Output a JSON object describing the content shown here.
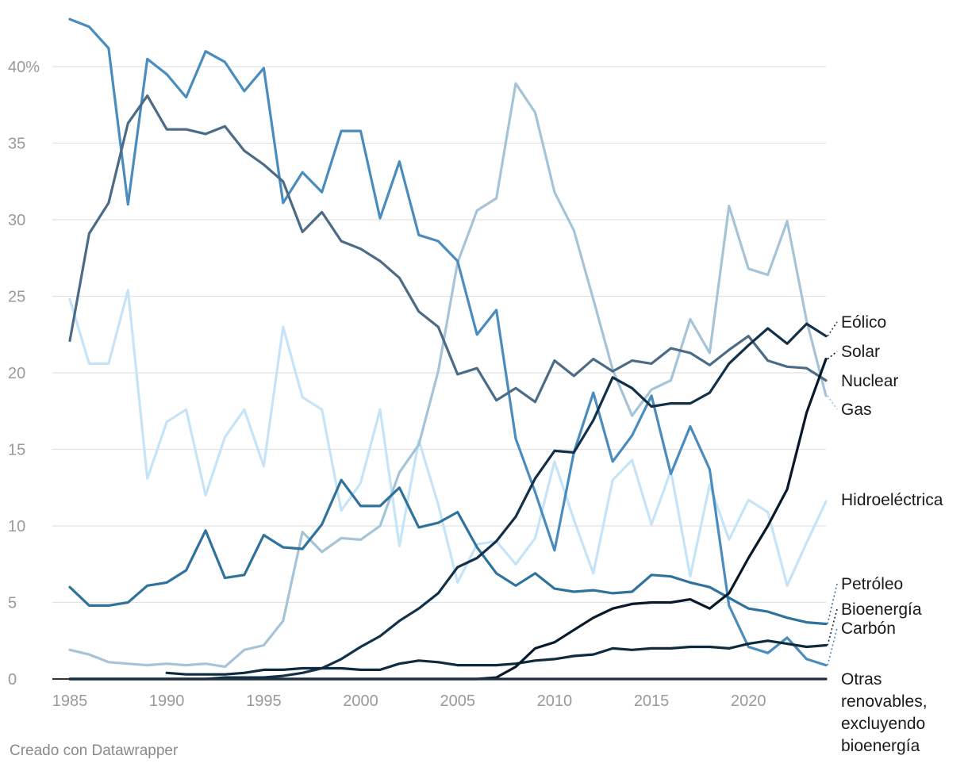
{
  "chart_data": {
    "type": "line",
    "title": "",
    "xlabel": "",
    "ylabel": "",
    "x": [
      1985,
      1986,
      1987,
      1988,
      1989,
      1990,
      1991,
      1992,
      1993,
      1994,
      1995,
      1996,
      1997,
      1998,
      1999,
      2000,
      2001,
      2002,
      2003,
      2004,
      2005,
      2006,
      2007,
      2008,
      2009,
      2010,
      2011,
      2012,
      2013,
      2014,
      2015,
      2016,
      2017,
      2018,
      2019,
      2020,
      2021,
      2022,
      2023,
      2024
    ],
    "xlim": [
      1985,
      2024
    ],
    "ylim": [
      0,
      44
    ],
    "xticks": [
      1985,
      1990,
      1995,
      2000,
      2005,
      2010,
      2015,
      2020
    ],
    "yticks": [
      0,
      5,
      10,
      15,
      20,
      25,
      30,
      35,
      40
    ],
    "ytick_labels": [
      "0",
      "5",
      "10",
      "15",
      "20",
      "25",
      "30",
      "35",
      "40%"
    ],
    "grid": true,
    "series": [
      {
        "name": "Hidroeléctrica",
        "color": "#c6e4f8",
        "values": [
          24.8,
          20.6,
          20.6,
          25.4,
          13.1,
          16.8,
          17.6,
          12.0,
          15.8,
          17.6,
          13.9,
          23.0,
          18.4,
          17.6,
          11.0,
          12.8,
          17.6,
          8.7,
          15.6,
          11.4,
          6.3,
          8.8,
          9.0,
          7.5,
          9.2,
          14.2,
          10.4,
          6.9,
          13.0,
          14.3,
          10.1,
          13.6,
          6.7,
          12.7,
          9.1,
          11.7,
          10.9,
          6.1,
          8.9,
          11.6
        ]
      },
      {
        "name": "Gas",
        "color": "#a5c4d8",
        "values": [
          1.9,
          1.6,
          1.1,
          1.0,
          0.9,
          1.0,
          0.9,
          1.0,
          0.8,
          1.9,
          2.2,
          3.8,
          9.6,
          8.3,
          9.2,
          9.1,
          10.0,
          13.5,
          15.3,
          20.1,
          27.2,
          30.6,
          31.4,
          38.9,
          37.0,
          31.8,
          29.3,
          24.8,
          20.2,
          17.2,
          18.9,
          19.5,
          23.5,
          21.3,
          30.9,
          26.8,
          26.4,
          29.9,
          23.4,
          18.5
        ]
      },
      {
        "name": "Carbón",
        "color": "#4a8cbe",
        "values": [
          43.1,
          42.6,
          41.2,
          31.0,
          40.5,
          39.5,
          38.0,
          41.0,
          40.3,
          38.4,
          39.9,
          31.1,
          33.1,
          31.8,
          35.8,
          35.8,
          30.1,
          33.8,
          29.0,
          28.6,
          27.3,
          22.5,
          24.1,
          15.7,
          12.2,
          8.4,
          14.8,
          18.7,
          14.2,
          15.9,
          18.5,
          13.4,
          16.5,
          13.7,
          4.8,
          2.1,
          1.7,
          2.7,
          1.3,
          0.9
        ]
      },
      {
        "name": "Nuclear",
        "color": "#4b6b86",
        "values": [
          22.1,
          29.1,
          31.1,
          36.3,
          38.1,
          35.9,
          35.9,
          35.6,
          36.1,
          34.5,
          33.6,
          32.5,
          29.2,
          30.5,
          28.6,
          28.1,
          27.3,
          26.2,
          24.0,
          23.0,
          19.9,
          20.3,
          18.2,
          19.0,
          18.1,
          20.8,
          19.8,
          20.9,
          20.1,
          20.8,
          20.6,
          21.6,
          21.3,
          20.5,
          21.5,
          22.4,
          20.8,
          20.4,
          20.3,
          19.5
        ]
      },
      {
        "name": "Petróleo",
        "color": "#2f729c",
        "values": [
          6.0,
          4.8,
          4.8,
          5.0,
          6.1,
          6.3,
          7.1,
          9.7,
          6.6,
          6.8,
          9.4,
          8.6,
          8.5,
          10.1,
          13.0,
          11.3,
          11.3,
          12.5,
          9.9,
          10.2,
          10.9,
          8.6,
          6.9,
          6.1,
          6.9,
          5.9,
          5.7,
          5.8,
          5.6,
          5.7,
          6.8,
          6.7,
          6.3,
          6.0,
          5.3,
          4.6,
          4.4,
          4.0,
          3.7,
          3.6
        ]
      },
      {
        "name": "Eólico",
        "color": "#123149",
        "values": [
          0.0,
          0.0,
          0.0,
          0.0,
          0.0,
          0.0,
          0.0,
          0.0,
          0.1,
          0.1,
          0.1,
          0.2,
          0.4,
          0.7,
          1.3,
          2.1,
          2.8,
          3.8,
          4.6,
          5.6,
          7.3,
          7.9,
          9.0,
          10.6,
          13.1,
          14.9,
          14.8,
          16.9,
          19.7,
          19.0,
          17.8,
          18.0,
          18.0,
          18.7,
          20.6,
          21.8,
          22.9,
          21.9,
          23.2,
          22.4
        ]
      },
      {
        "name": "Bioenergía",
        "color": "#0e2a3e",
        "values": [
          null,
          null,
          null,
          null,
          null,
          0.4,
          0.3,
          0.3,
          0.3,
          0.4,
          0.6,
          0.6,
          0.7,
          0.7,
          0.7,
          0.6,
          0.6,
          1.0,
          1.2,
          1.1,
          0.9,
          0.9,
          0.9,
          1.0,
          1.2,
          1.3,
          1.5,
          1.6,
          2.0,
          1.9,
          2.0,
          2.0,
          2.1,
          2.1,
          2.0,
          2.3,
          2.5,
          2.3,
          2.1,
          2.2
        ]
      },
      {
        "name": "Solar",
        "color": "#07192a",
        "values": [
          0.0,
          0.0,
          0.0,
          0.0,
          0.0,
          0.0,
          0.0,
          0.0,
          0.0,
          0.0,
          0.0,
          0.0,
          0.0,
          0.0,
          0.0,
          0.0,
          0.0,
          0.0,
          0.0,
          0.0,
          0.0,
          0.0,
          0.1,
          0.8,
          2.0,
          2.4,
          3.2,
          4.0,
          4.6,
          4.9,
          5.0,
          5.0,
          5.2,
          4.6,
          5.6,
          7.9,
          10.0,
          12.4,
          17.4,
          20.9
        ]
      },
      {
        "name": "Otras renovables, excluyendo bioenergía",
        "color": "#1c2f40",
        "values": [
          0.0,
          0.0,
          0.0,
          0.0,
          0.0,
          0.0,
          0.0,
          0.0,
          0.0,
          0.0,
          0.0,
          0.0,
          0.0,
          0.0,
          0.0,
          0.0,
          0.0,
          0.0,
          0.0,
          0.0,
          0.0,
          0.0,
          0.0,
          0.0,
          0.0,
          0.0,
          0.0,
          0.0,
          0.0,
          0.0,
          0.0,
          0.0,
          0.0,
          0.0,
          0.0,
          0.0,
          0.0,
          0.0,
          0.0,
          0.0
        ]
      }
    ],
    "labels": [
      {
        "series": "Eólico",
        "lines": [
          "Eólico"
        ]
      },
      {
        "series": "Solar",
        "lines": [
          "Solar"
        ]
      },
      {
        "series": "Nuclear",
        "lines": [
          "Nuclear"
        ]
      },
      {
        "series": "Gas",
        "lines": [
          "Gas"
        ]
      },
      {
        "series": "Hidroeléctrica",
        "lines": [
          "Hidroeléctrica"
        ]
      },
      {
        "series": "Petróleo",
        "lines": [
          "Petróleo"
        ]
      },
      {
        "series": "Bioenergía",
        "lines": [
          "Bioenergía"
        ]
      },
      {
        "series": "Carbón",
        "lines": [
          "Carbón"
        ]
      },
      {
        "series": "Otras renovables, excluyendo bioenergía",
        "lines": [
          "Otras",
          "renovables,",
          "excluyendo",
          "bioenergía"
        ]
      }
    ]
  },
  "footer": {
    "credit": "Creado con Datawrapper"
  }
}
